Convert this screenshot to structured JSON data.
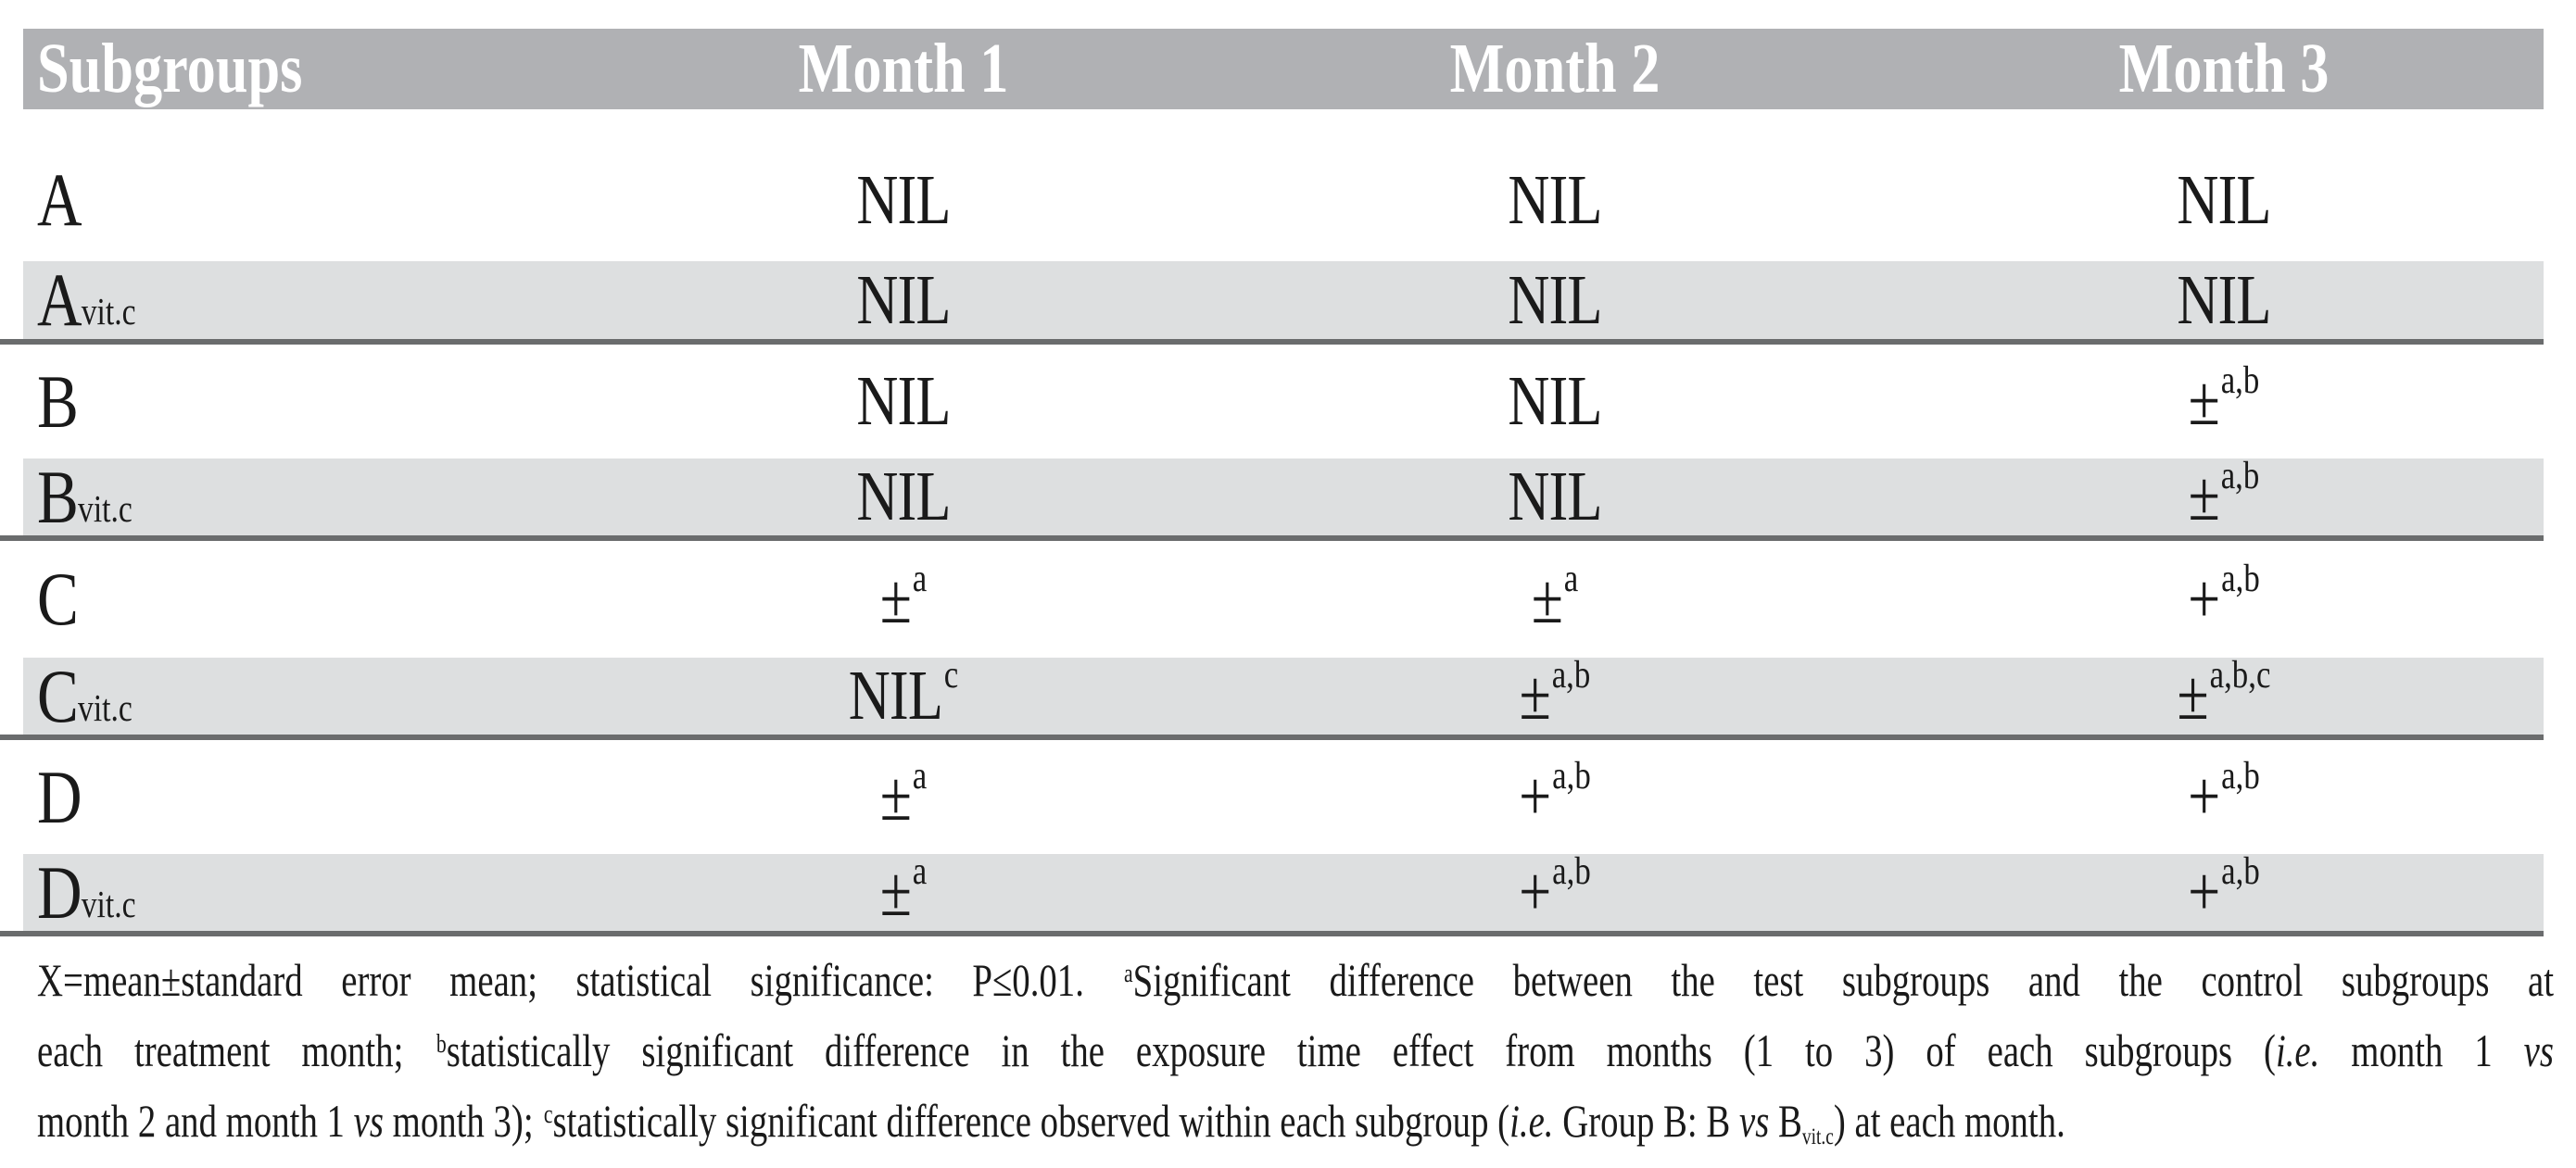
{
  "colors": {
    "header_bg": "#b0b1b4",
    "header_text": "#ffffff",
    "band_bg": "#dddfe0",
    "rule": "#6a6c6d",
    "text": "#1a1a1a",
    "page_bg": "#ffffff"
  },
  "table": {
    "columns": [
      "Subgroups",
      "Month 1",
      "Month 2",
      "Month 3"
    ],
    "rows": [
      {
        "label": "A",
        "values": [
          "NIL",
          "NIL",
          "NIL"
        ]
      },
      {
        "label": "A_{vit.c}",
        "values": [
          "NIL",
          "NIL",
          "NIL"
        ]
      },
      {
        "label": "B",
        "values": [
          "NIL",
          "NIL",
          "±^{a,b}"
        ]
      },
      {
        "label": "B_{vit.c}",
        "values": [
          "NIL",
          "NIL",
          "±^{a,b}"
        ]
      },
      {
        "label": "C",
        "values": [
          "±^{a}",
          "±^{a}",
          "+^{a,b}"
        ]
      },
      {
        "label": "C_{vit.c}",
        "values": [
          "NIL^{c}",
          "±^{a,b}",
          "±^{a,b,c}"
        ]
      },
      {
        "label": "D",
        "values": [
          "±^{a}",
          "+^{a,b}",
          "+^{a,b}"
        ]
      },
      {
        "label": "D_{vit.c}",
        "values": [
          "±^{a}",
          "+^{a,b}",
          "+^{a,b}"
        ]
      }
    ]
  },
  "footnote": {
    "lines": [
      "X=mean±standard error mean; statistical significance: P≤0.01. ^{a}Significant difference between the test subgroups and the control subgroups at",
      "each treatment month; ^{b}statistically significant difference in the exposure time effect from months (1 to 3) of each subgroups (*i.e.* month 1 *vs*",
      "month 2 and month 1 *vs* month 3); ^{c}statistically significant difference observed within each subgroup (*i.e.* Group B: B *vs* B_{vit.c}) at each month."
    ]
  }
}
